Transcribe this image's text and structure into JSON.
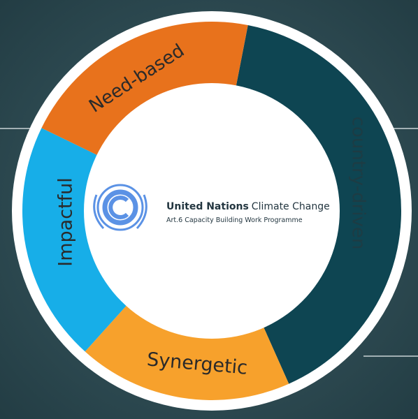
{
  "ring": {
    "segments": [
      {
        "label": "country-driven",
        "color": "#0e4552",
        "text_color": "#1d3c44"
      },
      {
        "label": "Synergetic",
        "color": "#f7a12c",
        "text_color": "#2a2a2a"
      },
      {
        "label": "Impactful",
        "color": "#17aee8",
        "text_color": "#2a2a2a"
      },
      {
        "label": "Need-based",
        "color": "#e8721c",
        "text_color": "#2a2a2a"
      }
    ]
  },
  "logo": {
    "org_name": "United Nations",
    "org_suffix": "Climate Change",
    "subtitle": "Art.6 Capacity Building Work Programme"
  }
}
